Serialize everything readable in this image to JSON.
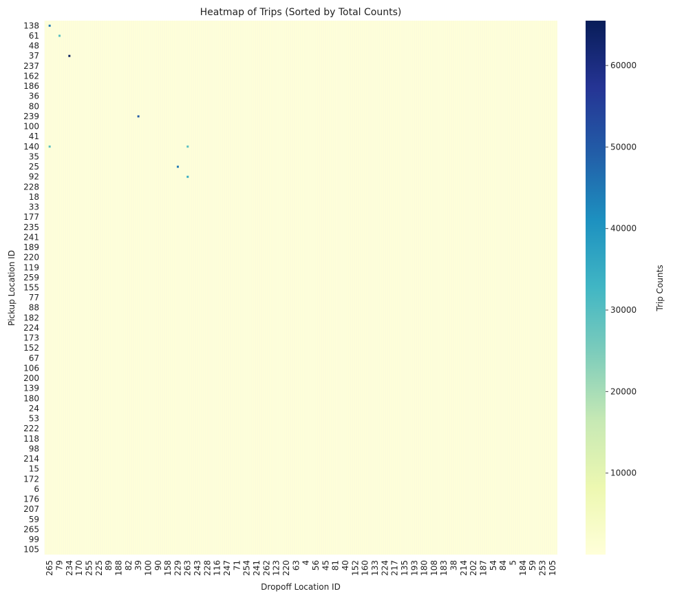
{
  "chart_data": {
    "type": "heatmap",
    "title": "Heatmap of Trips (Sorted by Total Counts)",
    "x_label": "Dropoff Location ID",
    "y_label": "Pickup Location ID",
    "colorbar_label": "Trip Counts",
    "rows": [
      "138",
      "61",
      "48",
      "37",
      "237",
      "162",
      "186",
      "36",
      "80",
      "239",
      "100",
      "41",
      "140",
      "35",
      "25",
      "92",
      "228",
      "18",
      "33",
      "177",
      "235",
      "241",
      "189",
      "220",
      "119",
      "259",
      "155",
      "77",
      "88",
      "182",
      "224",
      "173",
      "152",
      "67",
      "106",
      "200",
      "139",
      "180",
      "24",
      "53",
      "222",
      "118",
      "98",
      "214",
      "15",
      "172",
      "6",
      "176",
      "207",
      "59",
      "265",
      "99",
      "105"
    ],
    "columns": [
      "265",
      "79",
      "234",
      "170",
      "255",
      "225",
      "89",
      "188",
      "82",
      "39",
      "100",
      "90",
      "158",
      "229",
      "263",
      "243",
      "228",
      "116",
      "247",
      "71",
      "254",
      "241",
      "262",
      "123",
      "220",
      "63",
      "4",
      "56",
      "45",
      "81",
      "40",
      "152",
      "160",
      "133",
      "224",
      "217",
      "135",
      "193",
      "180",
      "108",
      "183",
      "38",
      "214",
      "202",
      "187",
      "54",
      "84",
      "5",
      "184",
      "59",
      "253",
      "105"
    ],
    "cells": [
      {
        "row": "37",
        "col": "234",
        "value": 65000
      },
      {
        "row": "239",
        "col": "39",
        "value": 50000
      },
      {
        "row": "138",
        "col": "265",
        "value": 45000
      },
      {
        "row": "25",
        "col": "229",
        "value": 45000
      },
      {
        "row": "92",
        "col": "263",
        "value": 35000
      },
      {
        "row": "61",
        "col": "79",
        "value": 30000
      },
      {
        "row": "140",
        "col": "263",
        "value": 30000
      },
      {
        "row": "140",
        "col": "265",
        "value": 30000
      }
    ],
    "zlim": [
      0,
      65500
    ],
    "zticks": [
      10000,
      20000,
      30000,
      40000,
      50000,
      60000
    ],
    "colormap": [
      "#ffffd9",
      "#edf8b1",
      "#c7e9b4",
      "#7fcdbb",
      "#41b6c4",
      "#1d91c0",
      "#225ea8",
      "#253494",
      "#081d58"
    ]
  }
}
